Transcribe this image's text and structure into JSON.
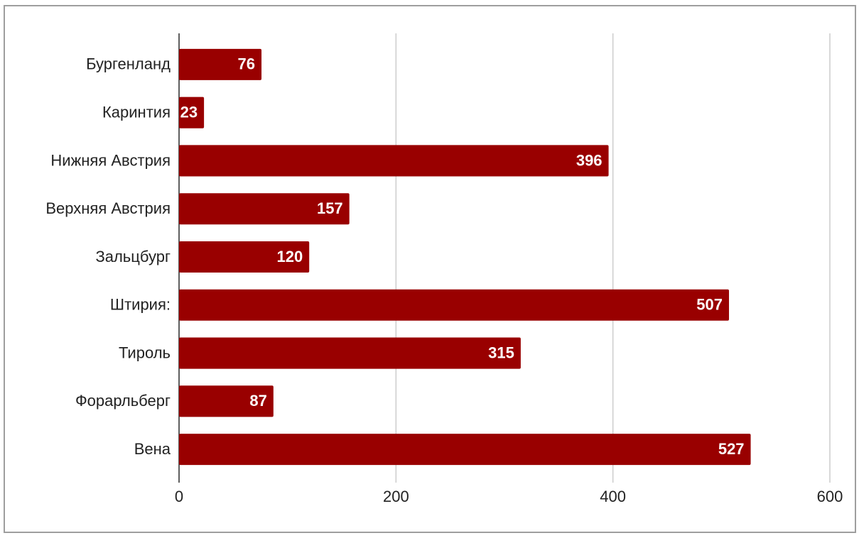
{
  "chart_data": {
    "type": "bar",
    "orientation": "horizontal",
    "categories": [
      "Бургенланд",
      "Каринтия",
      "Нижняя Австрия",
      "Верхняя Австрия",
      "Зальцбург",
      "Штирия:",
      "Тироль",
      "Форарльберг",
      "Вена"
    ],
    "values": [
      76,
      23,
      396,
      157,
      120,
      507,
      315,
      87,
      527
    ],
    "color": "#990000",
    "xlim": [
      0,
      600
    ],
    "xticks": [
      0,
      200,
      400,
      600
    ],
    "grid": true
  }
}
